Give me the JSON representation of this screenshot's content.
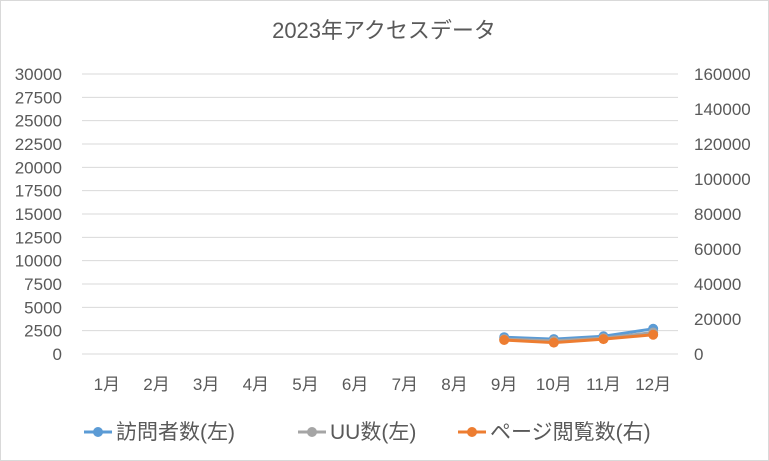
{
  "chart_data": {
    "type": "line",
    "title": "2023年アクセスデータ",
    "categories": [
      "1月",
      "2月",
      "3月",
      "4月",
      "5月",
      "6月",
      "7月",
      "8月",
      "9月",
      "10月",
      "11月",
      "12月"
    ],
    "y_left": {
      "ylim": [
        0,
        30000
      ],
      "ticks": [
        "0",
        "2500",
        "5000",
        "7500",
        "10000",
        "12500",
        "15000",
        "17500",
        "20000",
        "22500",
        "25000",
        "27500",
        "30000"
      ]
    },
    "y_right": {
      "ylim": [
        0,
        160000
      ],
      "ticks": [
        "0",
        "20000",
        "40000",
        "60000",
        "80000",
        "100000",
        "120000",
        "140000",
        "160000"
      ]
    },
    "grid": true,
    "legend_position": "bottom",
    "series": [
      {
        "name": "訪問者数(左)",
        "axis": "left",
        "color": "#5b9bd5",
        "values": [
          null,
          null,
          null,
          null,
          null,
          null,
          null,
          null,
          1800,
          1600,
          1900,
          2700
        ]
      },
      {
        "name": "UU数(左)",
        "axis": "left",
        "color": "#a5a5a5",
        "values": [
          null,
          null,
          null,
          null,
          null,
          null,
          null,
          null,
          1600,
          1400,
          1700,
          2300
        ]
      },
      {
        "name": "ページ閲覧数(右)",
        "axis": "right",
        "color": "#ed7d31",
        "values": [
          null,
          null,
          null,
          null,
          null,
          null,
          null,
          null,
          8000,
          6500,
          8500,
          11000
        ]
      }
    ]
  }
}
